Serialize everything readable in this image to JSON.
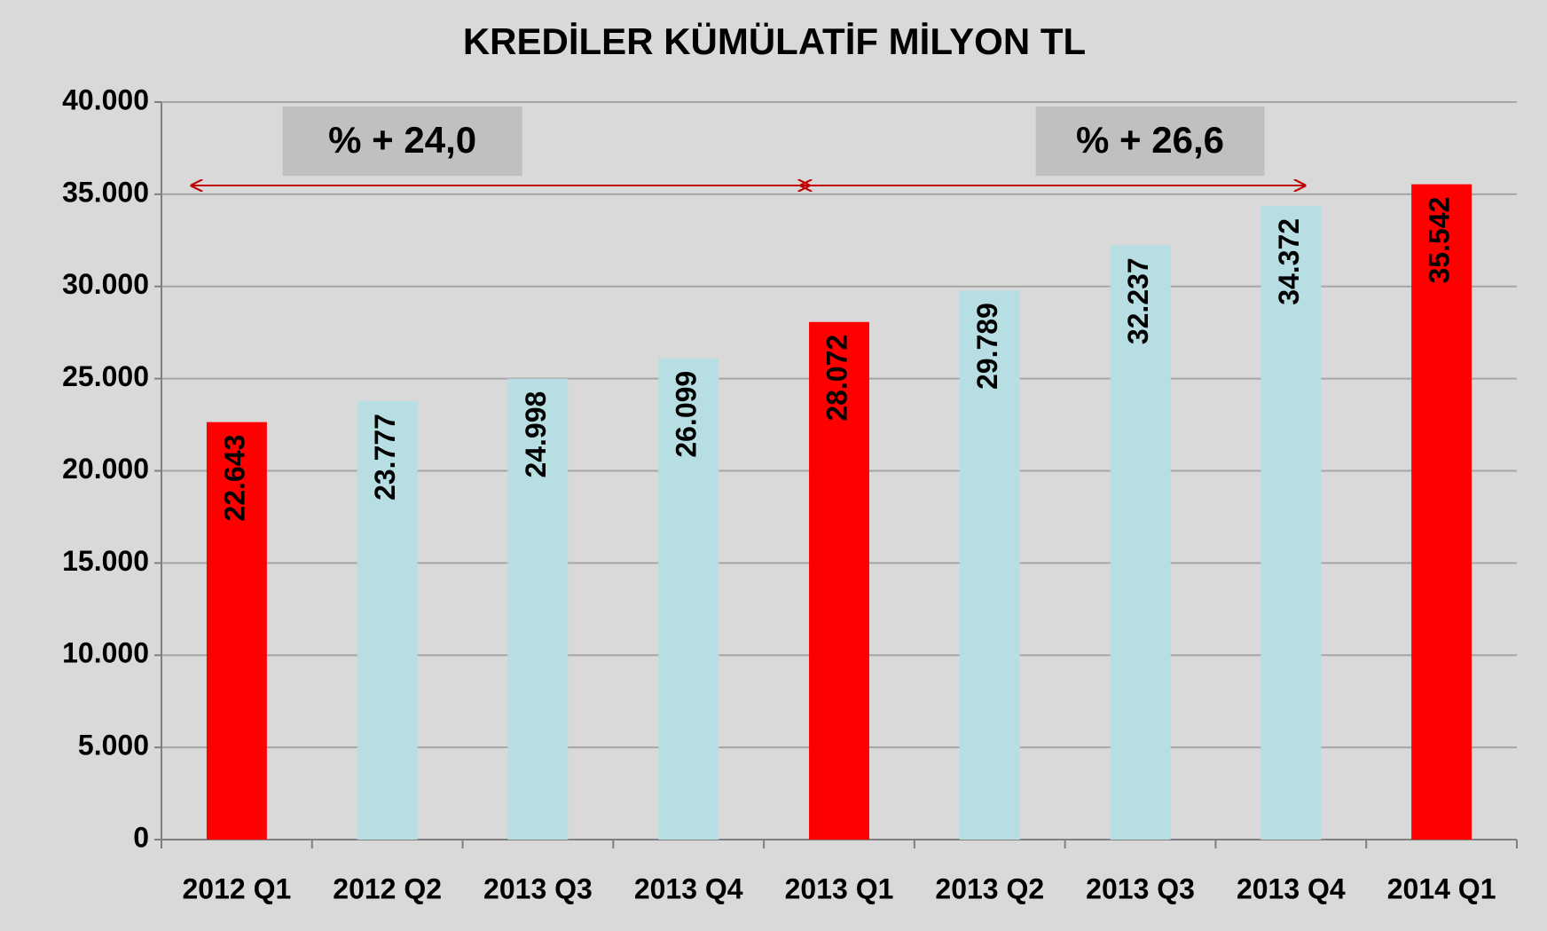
{
  "chart_data": {
    "type": "bar",
    "title": "KREDİLER KÜMÜLATİF MİLYON TL",
    "categories": [
      "2012 Q1",
      "2012 Q2",
      "2013 Q3",
      "2013 Q4",
      "2013 Q1",
      "2013 Q2",
      "2013 Q3",
      "2013 Q4",
      "2014 Q1"
    ],
    "values": [
      22643,
      23777,
      24998,
      26099,
      28072,
      29789,
      32237,
      34372,
      35542
    ],
    "value_labels": [
      "22.643",
      "23.777",
      "24.998",
      "26.099",
      "28.072",
      "29.789",
      "32.237",
      "34.372",
      "35.542"
    ],
    "colors": [
      "#ff0000",
      "#b7dfe3",
      "#b7dfe3",
      "#b7dfe3",
      "#ff0000",
      "#b7dfe3",
      "#b7dfe3",
      "#b7dfe3",
      "#ff0000"
    ],
    "ylim": [
      0,
      40000
    ],
    "yticks": [
      0,
      {
        "value": 5000,
        "label": "5.000"
      },
      {
        "value": 10000,
        "label": "10.000"
      },
      {
        "value": 15000,
        "label": "15.000"
      },
      {
        "value": 20000,
        "label": "20.000"
      },
      {
        "value": 25000,
        "label": "25.000"
      },
      {
        "value": 30000,
        "label": "30.000"
      },
      {
        "value": 35000,
        "label": "35.000"
      },
      {
        "value": 40000,
        "label": "40.000"
      }
    ],
    "grid": true,
    "annotations": [
      "% + 24,0",
      "% + 26,6"
    ]
  }
}
